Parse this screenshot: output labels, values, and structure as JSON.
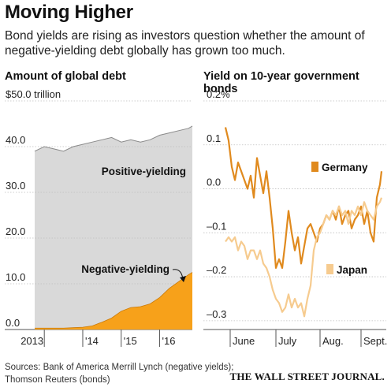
{
  "header": {
    "title": "Moving Higher",
    "subtitle": "Bond yields are rising as investors question whether the amount of negative-yielding debt globally has grown too much."
  },
  "footer": {
    "source": "Sources: Bank of America Merrill Lynch (negative yields); Thomson Reuters (bonds)",
    "source_line1": "Sources: Bank of America Merrill Lynch (negative yields);",
    "source_line2": "Thomson Reuters (bonds)",
    "brand": "THE WALL STREET JOURNAL."
  },
  "colors": {
    "positive_fill": "#d9d9d9",
    "negative_fill": "#f7a11a",
    "germany": "#e08a1e",
    "japan": "#f6cb8f",
    "text": "#222222"
  },
  "chart_data": [
    {
      "type": "area",
      "title": "Amount of global debt",
      "unit_label": "$50.0 trillion",
      "ylim": [
        0,
        50
      ],
      "yticks": [
        0,
        10,
        20,
        30,
        40,
        50
      ],
      "ytick_labels": [
        "0.0",
        "10.0",
        "20.0",
        "30.0",
        "40.0",
        "$50.0 trillion"
      ],
      "xlim": [
        2012.75,
        2016.85
      ],
      "xticks": [
        2013,
        2014,
        2015,
        2016
      ],
      "xtick_labels": [
        "2013",
        "'14",
        "'15",
        "'16"
      ],
      "grid": true,
      "series": [
        {
          "name": "Positive-yielding",
          "label_position": "middle",
          "x": [
            2012.75,
            2013.0,
            2013.25,
            2013.5,
            2013.75,
            2014.0,
            2014.25,
            2014.5,
            2014.75,
            2015.0,
            2015.25,
            2015.5,
            2015.75,
            2016.0,
            2016.25,
            2016.5,
            2016.75,
            2016.85
          ],
          "values": [
            39.0,
            40.0,
            39.5,
            39.0,
            40.0,
            40.5,
            41.0,
            41.5,
            42.0,
            41.0,
            41.5,
            41.0,
            41.5,
            42.5,
            43.0,
            43.5,
            44.0,
            44.5
          ]
        },
        {
          "name": "Negative-yielding",
          "label_position": "upper-right",
          "x": [
            2012.75,
            2013.0,
            2013.25,
            2013.5,
            2013.75,
            2014.0,
            2014.25,
            2014.5,
            2014.75,
            2015.0,
            2015.25,
            2015.5,
            2015.75,
            2016.0,
            2016.25,
            2016.5,
            2016.75,
            2016.85
          ],
          "values": [
            0.3,
            0.3,
            0.3,
            0.3,
            0.4,
            0.5,
            0.8,
            1.6,
            2.5,
            4.0,
            4.8,
            5.0,
            5.6,
            7.0,
            9.0,
            10.5,
            12.0,
            12.5
          ]
        }
      ]
    },
    {
      "type": "line",
      "title": "Yield on 10-year government bonds",
      "unit_label": "0.2%",
      "ylim": [
        -0.32,
        0.2
      ],
      "yticks": [
        0.2,
        0.1,
        0.0,
        -0.1,
        -0.2,
        -0.3
      ],
      "ytick_labels": [
        "0.2%",
        "0.1",
        "0.0",
        "–0.1",
        "–0.2",
        "–0.3"
      ],
      "xlim": [
        0,
        100
      ],
      "xticks": [
        3,
        32,
        60,
        86
      ],
      "xtick_labels": [
        "June",
        "July",
        "Aug.",
        "Sept."
      ],
      "grid": true,
      "series": [
        {
          "name": "Germany",
          "x": [
            0,
            2,
            4,
            6,
            8,
            10,
            12,
            14,
            16,
            18,
            20,
            22,
            24,
            26,
            28,
            30,
            32,
            34,
            36,
            38,
            40,
            42,
            44,
            46,
            48,
            50,
            52,
            54,
            56,
            58,
            60,
            62,
            64,
            66,
            68,
            70,
            72,
            74,
            76,
            78,
            80,
            82,
            84,
            86,
            88,
            90,
            92,
            94,
            96,
            98,
            99
          ],
          "values": [
            0.14,
            0.11,
            0.05,
            0.02,
            0.06,
            0.04,
            0.02,
            0.0,
            0.03,
            -0.02,
            0.07,
            0.03,
            -0.01,
            0.04,
            -0.02,
            -0.09,
            -0.18,
            -0.16,
            -0.18,
            -0.12,
            -0.05,
            -0.1,
            -0.14,
            -0.11,
            -0.17,
            -0.13,
            -0.09,
            -0.08,
            -0.1,
            -0.12,
            -0.09,
            -0.08,
            -0.06,
            -0.07,
            -0.05,
            -0.07,
            -0.04,
            -0.08,
            -0.06,
            -0.05,
            -0.09,
            -0.07,
            -0.06,
            -0.04,
            -0.08,
            -0.05,
            -0.1,
            -0.12,
            -0.02,
            0.01,
            0.04
          ]
        },
        {
          "name": "Japan",
          "x": [
            0,
            2,
            4,
            6,
            8,
            10,
            12,
            14,
            16,
            18,
            20,
            22,
            24,
            26,
            28,
            30,
            32,
            34,
            36,
            38,
            40,
            42,
            44,
            46,
            48,
            50,
            52,
            54,
            56,
            58,
            60,
            62,
            64,
            66,
            68,
            70,
            72,
            74,
            76,
            78,
            80,
            82,
            84,
            86,
            88,
            90,
            92,
            94,
            96,
            98,
            99
          ],
          "values": [
            -0.12,
            -0.11,
            -0.12,
            -0.11,
            -0.14,
            -0.12,
            -0.13,
            -0.16,
            -0.14,
            -0.14,
            -0.16,
            -0.14,
            -0.17,
            -0.18,
            -0.2,
            -0.23,
            -0.25,
            -0.26,
            -0.28,
            -0.27,
            -0.24,
            -0.27,
            -0.25,
            -0.27,
            -0.26,
            -0.29,
            -0.25,
            -0.22,
            -0.14,
            -0.11,
            -0.1,
            -0.08,
            -0.06,
            -0.07,
            -0.05,
            -0.06,
            -0.04,
            -0.06,
            -0.05,
            -0.08,
            -0.05,
            -0.06,
            -0.04,
            -0.06,
            -0.03,
            -0.05,
            -0.06,
            -0.07,
            -0.04,
            -0.03,
            -0.02
          ]
        }
      ]
    }
  ]
}
